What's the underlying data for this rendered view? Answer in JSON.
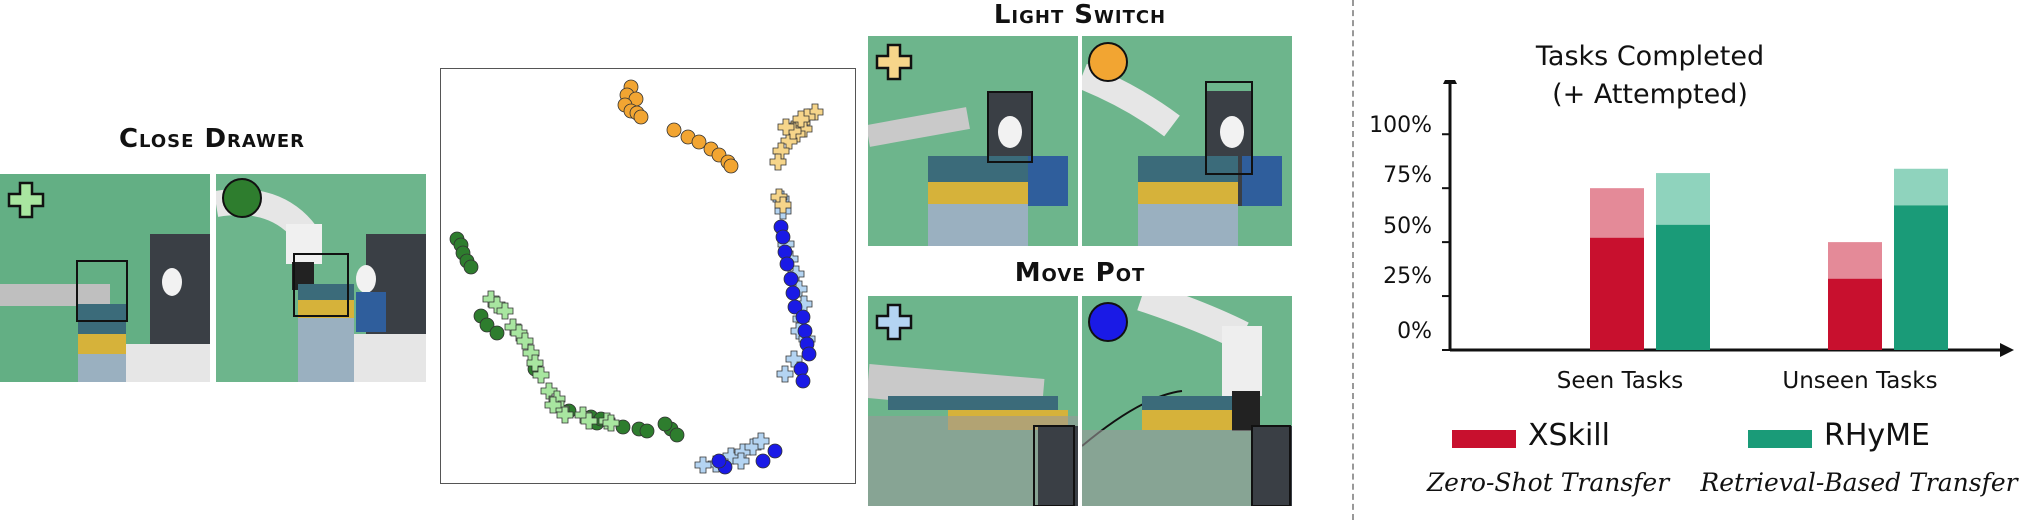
{
  "panels": {
    "close_drawer": {
      "title": "Close Drawer"
    },
    "light_switch": {
      "title": "Light Switch"
    },
    "move_pot": {
      "title": "Move Pot"
    }
  },
  "colors": {
    "xskill": "#c8102e",
    "xskill_light": "#e48a98",
    "rhyme": "#1a9b78",
    "rhyme_light": "#8fd3bd",
    "drawer_human": "#a8e6a0",
    "drawer_robot": "#2e7d2e",
    "switch_human": "#f6d58a",
    "switch_robot": "#f2a532",
    "pot_human": "#b4d4f2",
    "pot_robot": "#1a1ae6",
    "green_screen": "#6db58c"
  },
  "icons": [
    "plus-marker-icon",
    "circle-marker-icon"
  ],
  "chart_data": {
    "type": "bar",
    "title": "Tasks Completed",
    "subtitle": "(+ Attempted)",
    "categories": [
      "Seen Tasks",
      "Unseen Tasks"
    ],
    "yticks": [
      "0%",
      "25%",
      "50%",
      "75%",
      "100%"
    ],
    "ylim": [
      0,
      100
    ],
    "series": [
      {
        "name": "XSkill",
        "values": [
          52,
          33
        ],
        "attempted": [
          75,
          50
        ]
      },
      {
        "name": "RHyME",
        "values": [
          58,
          67
        ],
        "attempted": [
          82,
          84
        ]
      }
    ],
    "legend": [
      {
        "name": "XSkill",
        "subtitle": "Zero-Shot Transfer"
      },
      {
        "name": "RHyME",
        "subtitle": "Retrieval-Based Transfer"
      }
    ]
  }
}
